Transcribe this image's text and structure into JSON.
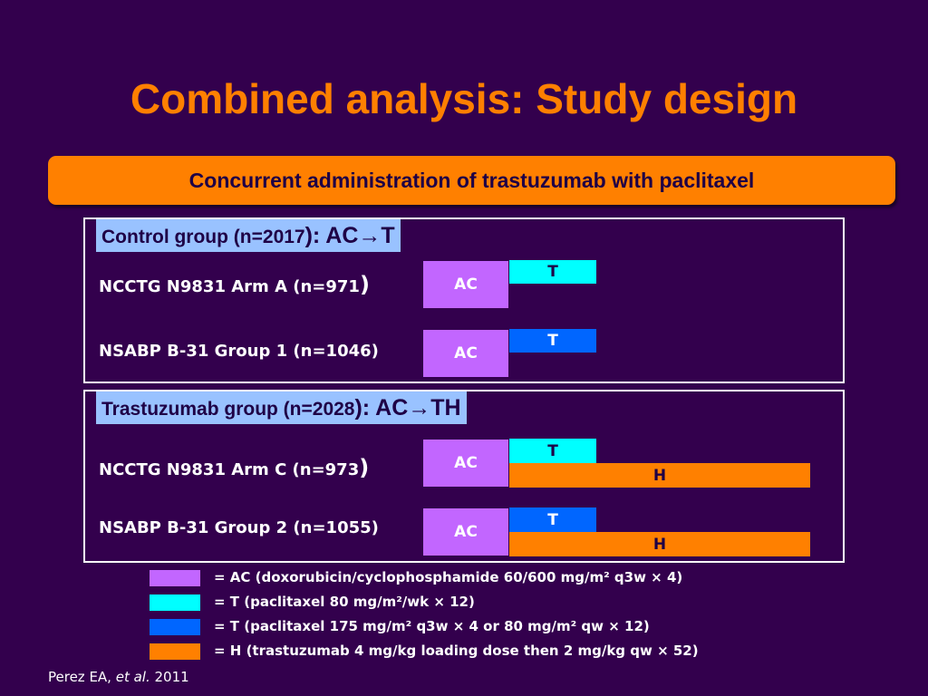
{
  "title": "Combined analysis: Study design",
  "banner": "Concurrent administration of trastuzumab with paclitaxel",
  "control_group": {
    "label": "Control group (n=2017",
    "regimen": "): AC→T",
    "arms": [
      {
        "name": "NCCTG N9831 Arm A (n=971",
        "close": ")",
        "ac": "AC",
        "t": "T"
      },
      {
        "name": "NSABP B-31 Group 1 (n=1046)",
        "close": "",
        "ac": "AC",
        "t": "T"
      }
    ]
  },
  "trastuzumab_group": {
    "label": "Trastuzumab group (n=2028",
    "regimen": "): AC→TH",
    "arms": [
      {
        "name": "NCCTG N9831 Arm C (n=973",
        "close": ")",
        "ac": "AC",
        "t": "T",
        "h": "H"
      },
      {
        "name": "NSABP B-31 Group 2 (n=1055)",
        "close": "",
        "ac": "AC",
        "t": "T",
        "h": "H"
      }
    ]
  },
  "legend": [
    {
      "color": "#c266ff",
      "text": "= AC (doxorubicin/cyclophosphamide 60/600 mg/m² q3w × 4)"
    },
    {
      "color": "#00ffff",
      "text": "= T (paclitaxel 80 mg/m²/wk × 12)"
    },
    {
      "color": "#0066ff",
      "text": "= T (paclitaxel 175 mg/m² q3w × 4 or 80 mg/m² qw × 12)"
    },
    {
      "color": "#ff8000",
      "text": "= H (trastuzumab 4 mg/kg loading dose then 2 mg/kg qw × 52)"
    }
  ],
  "citation": {
    "author": "Perez EA, ",
    "etal": "et al.",
    "year": " 2011"
  },
  "colors": {
    "background": "#33004d",
    "title": "#ff8000",
    "ac": "#c266ff",
    "t_weekly": "#00ffff",
    "t_3weekly": "#0066ff",
    "h": "#ff8000"
  }
}
